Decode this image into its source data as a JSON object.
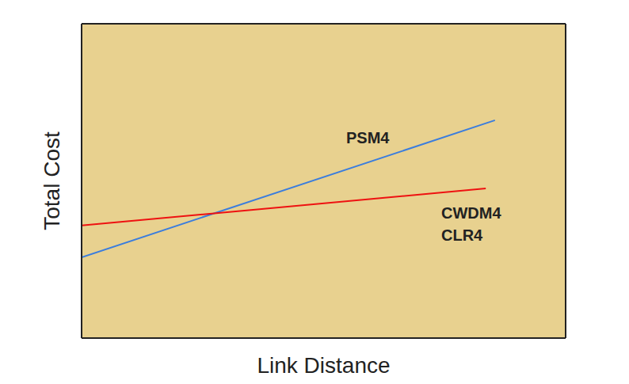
{
  "chart_data": {
    "type": "line",
    "x_label": "Link Distance",
    "y_label": "Total Cost",
    "xlim": [
      0,
      100
    ],
    "ylim": [
      0,
      100
    ],
    "xticks": [],
    "yticks": [],
    "tick_labels": false,
    "grid": false,
    "series": [
      {
        "name": "PSM4",
        "color": "#3b7ddd",
        "x": [
          0,
          85.4
        ],
        "values": [
          25.7,
          69.3
        ]
      },
      {
        "name": "CWDM4\nCLR4",
        "color": "#ee1111",
        "x": [
          0,
          83.5
        ],
        "values": [
          35.8,
          47.6
        ]
      }
    ]
  }
}
